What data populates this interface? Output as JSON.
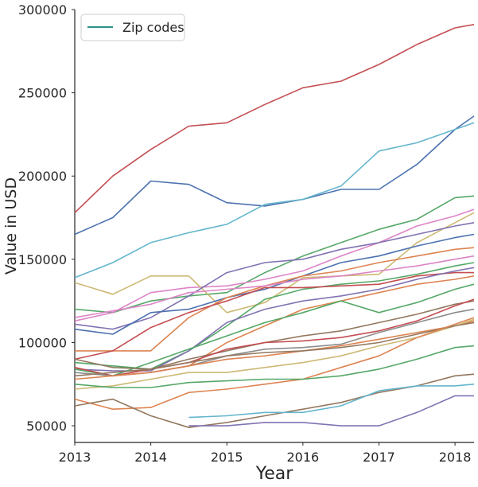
{
  "chart_data": {
    "type": "line",
    "title": "",
    "xlabel": "Year",
    "ylabel": "Value in USD",
    "xlim": [
      2013.0,
      2018.25
    ],
    "ylim": [
      40000,
      300000
    ],
    "x_ticks": [
      "2013",
      "2014",
      "2015",
      "2016",
      "2017",
      "2018"
    ],
    "y_ticks": [
      "50000",
      "100000",
      "150000",
      "200000",
      "250000",
      "300000"
    ],
    "grid": false,
    "legend": {
      "position": "top-left",
      "entries": [
        "Zip codes"
      ],
      "color": "#2a9187"
    },
    "x": [
      2013.0,
      2013.5,
      2014.0,
      2014.5,
      2015.0,
      2015.5,
      2016.0,
      2016.5,
      2017.0,
      2017.5,
      2018.0,
      2018.25
    ],
    "series": [
      {
        "color": "#c44e52",
        "values": [
          178000,
          200000,
          216000,
          230000,
          232000,
          243000,
          253000,
          257000,
          267000,
          279000,
          289000,
          291000
        ]
      },
      {
        "color": "#4c72b0",
        "values": [
          165000,
          175000,
          197000,
          195000,
          184000,
          182000,
          186000,
          192000,
          192000,
          207000,
          228000,
          236000
        ]
      },
      {
        "color": "#64b5cd",
        "values": [
          139000,
          148000,
          160000,
          166000,
          171000,
          183000,
          186000,
          194000,
          215000,
          220000,
          228000,
          232000
        ]
      },
      {
        "color": "#55a868",
        "values": [
          120000,
          118000,
          125000,
          128000,
          130000,
          142000,
          152000,
          160000,
          168000,
          174000,
          187000,
          188000
        ]
      },
      {
        "color": "#dd84c7",
        "values": [
          113000,
          118000,
          130000,
          133000,
          134000,
          138000,
          143000,
          152000,
          160000,
          170000,
          176000,
          180000
        ]
      },
      {
        "color": "#ccb974",
        "values": [
          136000,
          129000,
          140000,
          140000,
          118000,
          124000,
          139000,
          140000,
          141000,
          160000,
          172000,
          178000
        ]
      },
      {
        "color": "#8172b2",
        "values": [
          111000,
          108000,
          115000,
          128000,
          142000,
          148000,
          150000,
          156000,
          160000,
          165000,
          170000,
          172000
        ]
      },
      {
        "color": "#4c72b0",
        "values": [
          108000,
          105000,
          118000,
          120000,
          127000,
          132000,
          140000,
          148000,
          152000,
          158000,
          163000,
          165000
        ]
      },
      {
        "color": "#dd8452",
        "values": [
          95000,
          95000,
          95000,
          115000,
          127000,
          134000,
          140000,
          143000,
          148000,
          152000,
          156000,
          157000
        ]
      },
      {
        "color": "#dd84c7",
        "values": [
          115000,
          119000,
          123000,
          130000,
          132000,
          134000,
          138000,
          140000,
          143000,
          146000,
          150000,
          152000
        ]
      },
      {
        "color": "#55a868",
        "values": [
          88000,
          86000,
          84000,
          95000,
          110000,
          126000,
          132000,
          135000,
          137000,
          141000,
          146000,
          148000
        ]
      },
      {
        "color": "#c44e52",
        "values": [
          90000,
          95000,
          109000,
          118000,
          125000,
          133000,
          133000,
          134000,
          135000,
          140000,
          142000,
          142000
        ]
      },
      {
        "color": "#8172b2",
        "values": [
          84000,
          83000,
          83000,
          95000,
          112000,
          120000,
          125000,
          128000,
          132000,
          138000,
          143000,
          145000
        ]
      },
      {
        "color": "#dd8452",
        "values": [
          85000,
          80000,
          82000,
          86000,
          100000,
          110000,
          120000,
          125000,
          130000,
          135000,
          138000,
          140000
        ]
      },
      {
        "color": "#55a868",
        "values": [
          84000,
          80000,
          88000,
          96000,
          104000,
          112000,
          118000,
          125000,
          118000,
          124000,
          132000,
          135000
        ]
      },
      {
        "color": "#937860",
        "values": [
          90000,
          85000,
          84000,
          90000,
          95000,
          100000,
          104000,
          107000,
          112000,
          117000,
          123000,
          125000
        ]
      },
      {
        "color": "#c44e52",
        "values": [
          85000,
          80000,
          84000,
          88000,
          96000,
          100000,
          101000,
          103000,
          107000,
          113000,
          122000,
          126000
        ]
      },
      {
        "color": "#8c8c8c",
        "values": [
          82000,
          80000,
          82000,
          86000,
          92000,
          96000,
          97000,
          99000,
          106000,
          112000,
          118000,
          120000
        ]
      },
      {
        "color": "#dd8452",
        "values": [
          78000,
          80000,
          82000,
          86000,
          90000,
          92000,
          95000,
          98000,
          102000,
          106000,
          110000,
          113000
        ]
      },
      {
        "color": "#ccb974",
        "values": [
          72000,
          74000,
          78000,
          82000,
          82000,
          85000,
          88000,
          92000,
          98000,
          103000,
          110000,
          114000
        ]
      },
      {
        "color": "#937860",
        "values": [
          80000,
          82000,
          84000,
          88000,
          92000,
          94000,
          95000,
          97000,
          100000,
          105000,
          110000,
          112000
        ]
      },
      {
        "color": "#dd8452",
        "values": [
          66000,
          60000,
          61000,
          70000,
          72000,
          75000,
          78000,
          85000,
          92000,
          103000,
          111000,
          115000
        ]
      },
      {
        "color": "#55a868",
        "values": [
          75000,
          73000,
          73000,
          76000,
          77000,
          78000,
          78000,
          80000,
          84000,
          90000,
          97000,
          98000
        ]
      },
      {
        "color": "#937860",
        "values": [
          62000,
          66000,
          56000,
          49000,
          52000,
          56000,
          60000,
          64000,
          70000,
          74000,
          80000,
          81000
        ]
      },
      {
        "color": "#64b5cd",
        "values": [
          null,
          null,
          null,
          55000,
          56000,
          58000,
          58000,
          62000,
          71000,
          74000,
          74000,
          75000
        ]
      },
      {
        "color": "#8172b2",
        "values": [
          null,
          null,
          null,
          50000,
          50000,
          52000,
          52000,
          50000,
          50000,
          58000,
          68000,
          68000
        ]
      }
    ]
  }
}
